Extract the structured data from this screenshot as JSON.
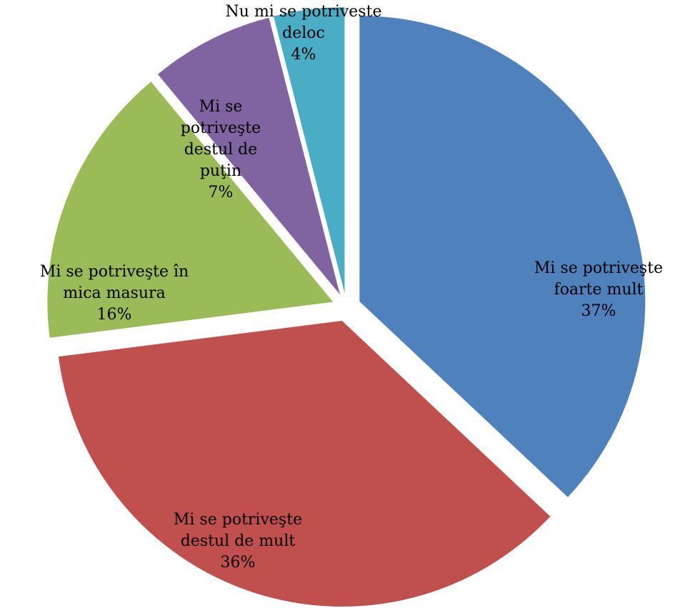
{
  "chart_data": {
    "type": "pie",
    "title": "",
    "legend": "none",
    "slices": [
      {
        "label": [
          "Mi se potriveşte",
          "foarte mult"
        ],
        "percent_label": "37%",
        "value": 37,
        "color": "#4F81BD"
      },
      {
        "label": [
          "Mi se potriveşte",
          "destul de mult"
        ],
        "percent_label": "36%",
        "value": 36,
        "color": "#C0504D"
      },
      {
        "label": [
          "Mi se potriveşte în",
          "mica masura"
        ],
        "percent_label": "16%",
        "value": 16,
        "color": "#9BBB59"
      },
      {
        "label": [
          "Mi se",
          "potriveşte",
          "destul de",
          "puţin"
        ],
        "percent_label": "7%",
        "value": 7,
        "color": "#8064A2"
      },
      {
        "label": [
          "Nu mi se potriveste",
          "deloc"
        ],
        "percent_label": "4%",
        "value": 4,
        "color": "#4BACC6"
      }
    ]
  }
}
